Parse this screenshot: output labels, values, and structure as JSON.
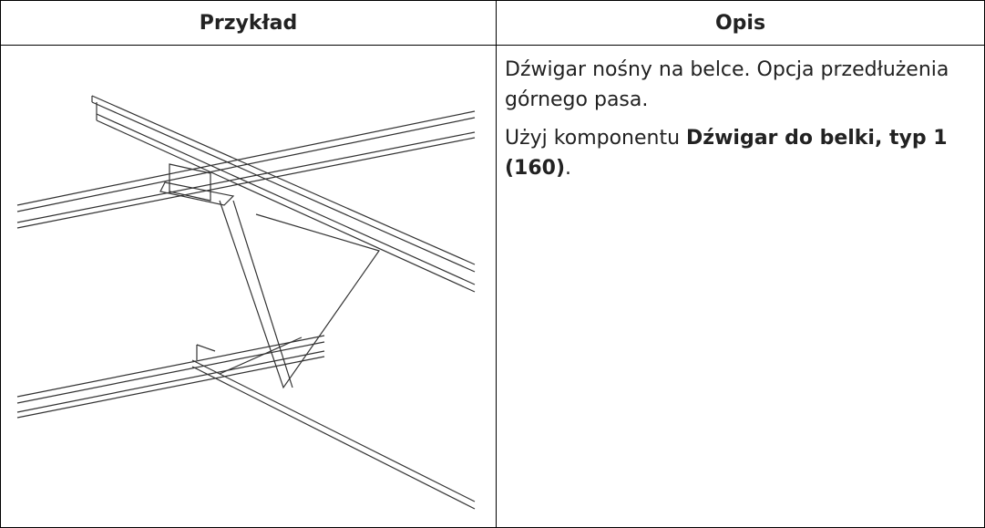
{
  "table": {
    "header": [
      "Przykład",
      "Opis"
    ],
    "rows": [
      {
        "description": [
          {
            "runs": [
              {
                "text": "Dźwigar nośny na belce. Opcja przedłużenia górnego pasa."
              }
            ]
          },
          {
            "runs": [
              {
                "text": "Użyj komponentu "
              },
              {
                "text": "Dźwigar do belki, typ 1 (160)",
                "bold": true
              },
              {
                "text": "."
              }
            ]
          }
        ]
      }
    ]
  }
}
